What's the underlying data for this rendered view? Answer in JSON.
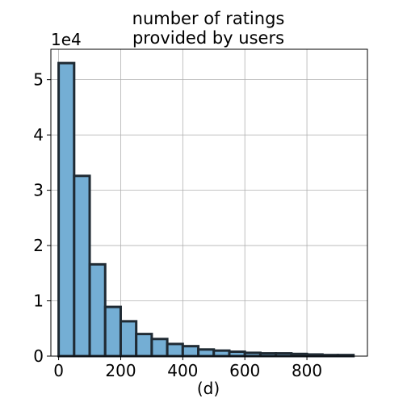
{
  "chart_data": {
    "type": "bar",
    "title_lines": [
      "number of ratings",
      "provided by users"
    ],
    "xlabel": "(d)",
    "ylabel": "",
    "y_offset_label": "1e4",
    "xlim": [
      -25,
      995
    ],
    "ylim": [
      0,
      5.55
    ],
    "x_ticks": [
      0,
      200,
      400,
      600,
      800
    ],
    "x_tick_labels": [
      "0",
      "200",
      "400",
      "600",
      "800"
    ],
    "y_ticks": [
      0,
      1,
      2,
      3,
      4,
      5
    ],
    "y_tick_labels": [
      "0",
      "1",
      "2",
      "3",
      "4",
      "5"
    ],
    "grid": true,
    "bar_color": "#74aed4",
    "edge_color": "#1f2a33",
    "bins": [
      {
        "x0": 0,
        "x1": 50,
        "value": 5.3
      },
      {
        "x0": 50,
        "x1": 100,
        "value": 3.26
      },
      {
        "x0": 100,
        "x1": 150,
        "value": 1.66
      },
      {
        "x0": 150,
        "x1": 200,
        "value": 0.89
      },
      {
        "x0": 200,
        "x1": 250,
        "value": 0.63
      },
      {
        "x0": 250,
        "x1": 300,
        "value": 0.4
      },
      {
        "x0": 300,
        "x1": 350,
        "value": 0.31
      },
      {
        "x0": 350,
        "x1": 400,
        "value": 0.22
      },
      {
        "x0": 400,
        "x1": 450,
        "value": 0.18
      },
      {
        "x0": 450,
        "x1": 500,
        "value": 0.12
      },
      {
        "x0": 500,
        "x1": 550,
        "value": 0.1
      },
      {
        "x0": 550,
        "x1": 600,
        "value": 0.08
      },
      {
        "x0": 600,
        "x1": 650,
        "value": 0.06
      },
      {
        "x0": 650,
        "x1": 700,
        "value": 0.05
      },
      {
        "x0": 700,
        "x1": 750,
        "value": 0.05
      },
      {
        "x0": 750,
        "x1": 800,
        "value": 0.04
      },
      {
        "x0": 800,
        "x1": 850,
        "value": 0.03
      },
      {
        "x0": 850,
        "x1": 900,
        "value": 0.02
      },
      {
        "x0": 900,
        "x1": 950,
        "value": 0.02
      }
    ]
  }
}
